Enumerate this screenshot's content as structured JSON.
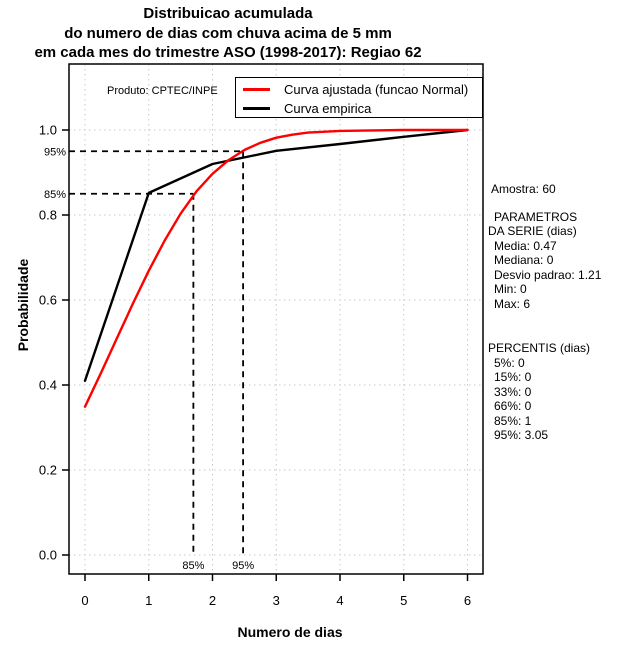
{
  "title": {
    "line1": "Distribuicao acumulada",
    "line2": "do numero de dias com chuva acima de 5 mm",
    "line3": "em cada mes do trimestre ASO (1998-2017): Regiao 62"
  },
  "produto_label": "Produto: CPTEC/INPE",
  "legend": {
    "items": [
      {
        "label": "Curva ajustada (funcao Normal)",
        "color": "#ff0000"
      },
      {
        "label": "Curva empirica",
        "color": "#000000"
      }
    ]
  },
  "axes": {
    "xlabel": "Numero de dias",
    "ylabel": "Probabilidade"
  },
  "panel": {
    "amostra": "Amostra: 60",
    "serie": [
      "PARAMETROS",
      "DA SERIE (dias)",
      "Media: 0.47",
      "Mediana: 0",
      "Desvio padrao: 1.21",
      "Min: 0",
      "Max: 6"
    ],
    "percentis": [
      "PERCENTIS (dias)",
      "5%: 0",
      "15%: 0",
      "33%: 0",
      "66%: 0",
      "85%: 1",
      "95%: 3.05"
    ]
  },
  "colors": {
    "fitted_curve": "#ff0000",
    "empirical_curve": "#000000",
    "gridline": "#c8c8c8",
    "guide": "#000000"
  },
  "chart_data": {
    "type": "line",
    "title": "Distribuicao acumulada do numero de dias com chuva acima de 5 mm em cada mes do trimestre ASO (1998-2017): Regiao 62",
    "xlabel": "Numero de dias",
    "ylabel": "Probabilidade",
    "xlim": [
      0,
      6
    ],
    "ylim": [
      0.0,
      1.0
    ],
    "x_ticks": [
      0,
      1,
      2,
      3,
      4,
      5,
      6
    ],
    "y_ticks": [
      "0.0",
      "0.2",
      "0.4",
      "0.6",
      "0.8",
      "1.0"
    ],
    "grid": true,
    "legend_position": "top-inside",
    "series": [
      {
        "name": "Curva ajustada (funcao Normal)",
        "color": "#ff0000",
        "x": [
          0,
          0.25,
          0.5,
          0.75,
          1,
          1.25,
          1.5,
          1.75,
          2,
          2.25,
          2.5,
          2.75,
          3,
          3.25,
          3.5,
          4,
          4.5,
          5,
          6
        ],
        "y": [
          0.349,
          0.428,
          0.51,
          0.591,
          0.669,
          0.74,
          0.803,
          0.856,
          0.897,
          0.929,
          0.953,
          0.97,
          0.982,
          0.989,
          0.994,
          0.998,
          0.999,
          1.0,
          1.0
        ]
      },
      {
        "name": "Curva empirica",
        "color": "#000000",
        "x": [
          0,
          1,
          2,
          3,
          4,
          5,
          6
        ],
        "y": [
          0.41,
          0.852,
          0.92,
          0.951,
          0.967,
          0.984,
          1.0
        ]
      }
    ],
    "guides": [
      {
        "label": "85%",
        "x": 1.7,
        "y": 0.85
      },
      {
        "label": "95%",
        "x": 2.48,
        "y": 0.95
      }
    ]
  }
}
